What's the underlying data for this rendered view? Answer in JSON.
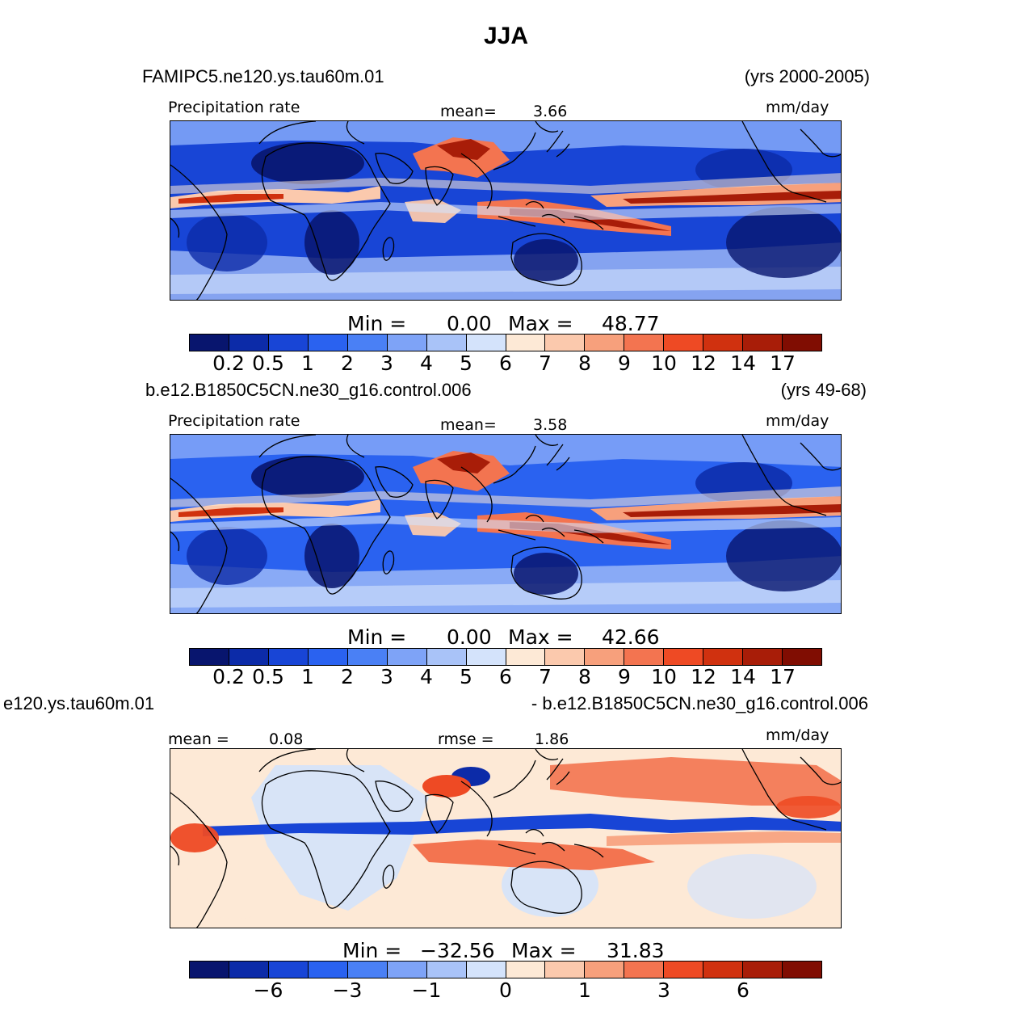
{
  "title": "JJA",
  "colors": [
    "#08156e",
    "#0c2ba8",
    "#1845d6",
    "#2a62f0",
    "#4a80f5",
    "#7ea3f7",
    "#a9c3f8",
    "#d4e3fb",
    "#fde9d6",
    "#fbc9ad",
    "#f7a07c",
    "#f37450",
    "#ee4a24",
    "#d0310f",
    "#a81d08",
    "#800d02"
  ],
  "panels": [
    {
      "case_left": "FAMIPC5.ne120.ys.tau60m.01",
      "case_right": "(yrs 2000-2005)",
      "var_label": "Precipitation  rate",
      "stat_label": "mean=",
      "stat_value": "3.66",
      "units": "mm/day",
      "min_label": "Min  =",
      "min_value": "0.00",
      "max_label": "Max  =",
      "max_value": "48.77",
      "ticks": [
        "0.2",
        "0.5",
        "1",
        "2",
        "3",
        "4",
        "5",
        "6",
        "7",
        "8",
        "9",
        "10",
        "12",
        "14",
        "17"
      ],
      "mode": "abs",
      "variant": 0
    },
    {
      "case_left": "b.e12.B1850C5CN.ne30_g16.control.006",
      "case_right": "(yrs 49-68)",
      "var_label": "Precipitation  rate",
      "stat_label": "mean=",
      "stat_value": "3.58",
      "units": "mm/day",
      "min_label": "Min  =",
      "min_value": "0.00",
      "max_label": "Max  =",
      "max_value": "42.66",
      "ticks": [
        "0.2",
        "0.5",
        "1",
        "2",
        "3",
        "4",
        "5",
        "6",
        "7",
        "8",
        "9",
        "10",
        "12",
        "14",
        "17"
      ],
      "mode": "abs",
      "variant": 1
    },
    {
      "case_left": "e120.ys.tau60m.01",
      "case_right": "- b.e12.B1850C5CN.ne30_g16.control.006",
      "var_label": "mean  =",
      "var_value": "0.08",
      "stat_label": "rmse  =",
      "stat_value": "1.86",
      "units": "mm/day",
      "min_label": "Min  =",
      "min_value": "−32.56",
      "max_label": "Max  =",
      "max_value": "31.83",
      "ticks": [
        "−6",
        "",
        "−3",
        "",
        "−1",
        "",
        "0",
        "",
        "1",
        "",
        "3",
        "",
        "6"
      ],
      "mode": "diff",
      "variant": 2
    }
  ]
}
